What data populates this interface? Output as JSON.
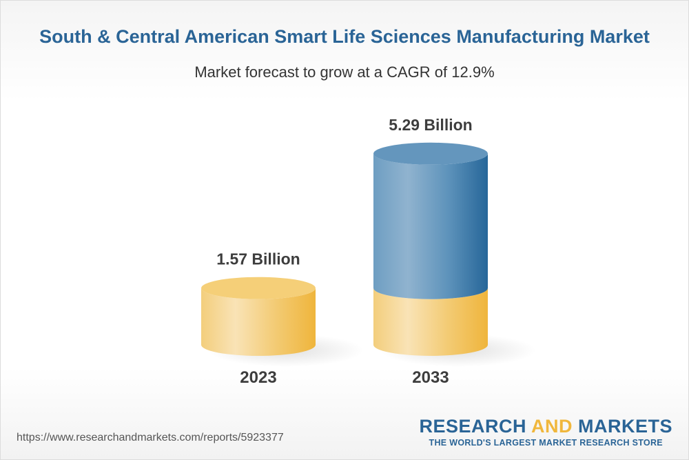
{
  "title": "South & Central American Smart Life Sciences Manufacturing Market",
  "subtitle": "Market forecast to grow at a CAGR of 12.9%",
  "chart_data": {
    "type": "bar",
    "style": "3d-cylinder",
    "categories": [
      "2023",
      "2033"
    ],
    "values": [
      1.57,
      5.29
    ],
    "value_labels": [
      "1.57 Billion",
      "5.29 Billion"
    ],
    "unit": "Billion",
    "cagr": "12.9%",
    "colors": {
      "base": "#f0b73c",
      "growth": "#2a6496"
    }
  },
  "footer": {
    "url": "https://www.researchandmarkets.com/reports/5923377",
    "logo_part1": "RESEARCH ",
    "logo_part2": "AND",
    "logo_part3": " MARKETS",
    "tagline": "THE WORLD'S LARGEST MARKET RESEARCH STORE"
  }
}
